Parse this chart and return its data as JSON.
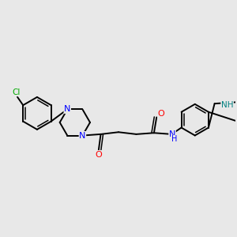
{
  "background_color": "#e8e8e8",
  "bond_color": "#000000",
  "atom_colors": {
    "N": "#0000ff",
    "O": "#ff0000",
    "Cl": "#00aa00",
    "NH": "#008080",
    "C": "#000000"
  },
  "figsize": [
    3.0,
    3.0
  ],
  "dpi": 100
}
